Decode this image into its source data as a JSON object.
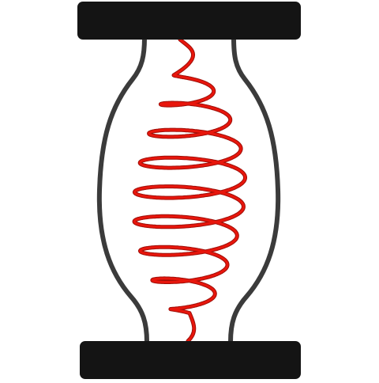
{
  "colors": {
    "background": "#ffffff",
    "end_caps": "#141414",
    "vessel_outline": "#3b3b3b",
    "coil": "#e8160c",
    "coil_dark": "#9e0e08"
  },
  "components": {
    "top_cap": "end-cap",
    "bottom_cap": "end-cap",
    "vessel": "bulged-glass-tube",
    "coil": "helical-spring-wire"
  }
}
